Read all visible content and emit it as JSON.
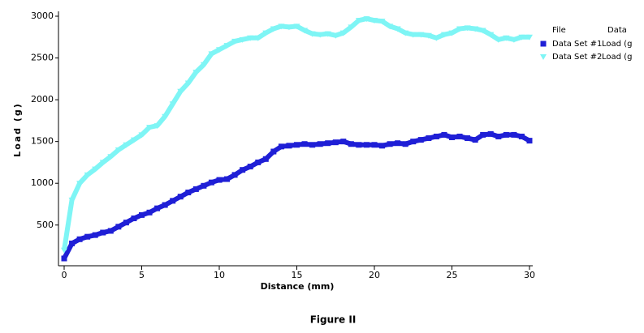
{
  "chart_data": {
    "type": "line",
    "title": "Figure II",
    "x_label": "Distance (mm)",
    "y_label": "Load (g)",
    "legend_headers": [
      "File",
      "Data"
    ],
    "legend_data_column": [
      "Load (g",
      "Load (g"
    ],
    "x": [
      0,
      0.5,
      1,
      1.5,
      2,
      2.5,
      3,
      3.5,
      4,
      4.5,
      5,
      5.5,
      6,
      6.5,
      7,
      7.5,
      8,
      8.5,
      9,
      9.5,
      10,
      10.5,
      11,
      11.5,
      12,
      12.5,
      13,
      13.5,
      14,
      14.5,
      15,
      15.5,
      16,
      16.5,
      17,
      17.5,
      18,
      18.5,
      19,
      19.5,
      20,
      20.5,
      21,
      21.5,
      22,
      22.5,
      23,
      23.5,
      24,
      24.5,
      25,
      25.5,
      26,
      26.5,
      27,
      27.5,
      28,
      28.5,
      29,
      29.5,
      30
    ],
    "series": [
      {
        "name": "Data Set #1",
        "color": "#1f1fd6",
        "marker": "square",
        "values": [
          100,
          280,
          330,
          360,
          380,
          410,
          430,
          480,
          530,
          580,
          620,
          650,
          700,
          740,
          790,
          840,
          890,
          930,
          970,
          1010,
          1040,
          1050,
          1100,
          1160,
          1200,
          1250,
          1290,
          1380,
          1440,
          1450,
          1460,
          1470,
          1460,
          1470,
          1480,
          1490,
          1500,
          1470,
          1460,
          1460,
          1460,
          1450,
          1470,
          1480,
          1470,
          1500,
          1520,
          1540,
          1560,
          1580,
          1550,
          1560,
          1540,
          1520,
          1580,
          1590,
          1560,
          1580,
          1580,
          1560,
          1510
        ]
      },
      {
        "name": "Data Set #2",
        "color": "#7ef5f5",
        "marker": "triangle",
        "values": [
          200,
          800,
          1000,
          1100,
          1170,
          1250,
          1320,
          1400,
          1460,
          1520,
          1580,
          1670,
          1690,
          1800,
          1950,
          2100,
          2200,
          2330,
          2420,
          2550,
          2600,
          2650,
          2700,
          2720,
          2740,
          2740,
          2800,
          2850,
          2880,
          2870,
          2880,
          2830,
          2790,
          2780,
          2790,
          2770,
          2800,
          2870,
          2950,
          2970,
          2950,
          2940,
          2880,
          2850,
          2800,
          2780,
          2780,
          2770,
          2740,
          2780,
          2800,
          2850,
          2860,
          2850,
          2830,
          2780,
          2720,
          2740,
          2720,
          2750,
          2750
        ]
      }
    ],
    "xlim": [
      0,
      30
    ],
    "xticks": [
      0,
      5,
      10,
      15,
      20,
      25,
      30
    ],
    "ylim": [
      100,
      3000
    ],
    "yticks": [
      500,
      1000,
      1500,
      2000,
      2500,
      3000
    ],
    "grid": false,
    "legend": "right"
  }
}
